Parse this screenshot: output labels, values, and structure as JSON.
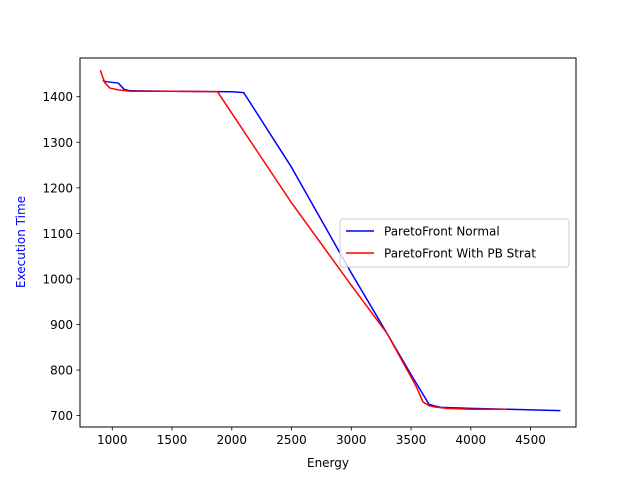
{
  "chart_data": {
    "type": "line",
    "title": "",
    "xlabel": "Energy",
    "ylabel": "Execution Time",
    "xlim": [
      730,
      4880
    ],
    "ylim": [
      675,
      1485
    ],
    "xticks": [
      1000,
      1500,
      2000,
      2500,
      3000,
      3500,
      4000,
      4500
    ],
    "yticks": [
      700,
      800,
      900,
      1000,
      1100,
      1200,
      1300,
      1400
    ],
    "grid": false,
    "legend_position": "center-right",
    "colors": {
      "ylabel": "#0000ff",
      "axes": "#000000",
      "background": "#ffffff"
    },
    "series": [
      {
        "name": "ParetoFront Normal",
        "color": "#0000ff",
        "points": [
          [
            920,
            1435
          ],
          [
            950,
            1433
          ],
          [
            1050,
            1430
          ],
          [
            1100,
            1416
          ],
          [
            1150,
            1413
          ],
          [
            1500,
            1412
          ],
          [
            2000,
            1411
          ],
          [
            2100,
            1409
          ],
          [
            2500,
            1245
          ],
          [
            3000,
            1013
          ],
          [
            3300,
            880
          ],
          [
            3500,
            790
          ],
          [
            3650,
            725
          ],
          [
            3700,
            721
          ],
          [
            3750,
            718
          ],
          [
            4000,
            716
          ],
          [
            4300,
            714
          ],
          [
            4750,
            711
          ]
        ]
      },
      {
        "name": "ParetoFront With PB Strat",
        "color": "#ff0000",
        "points": [
          [
            900,
            1458
          ],
          [
            920,
            1443
          ],
          [
            940,
            1430
          ],
          [
            980,
            1419
          ],
          [
            1050,
            1415
          ],
          [
            1150,
            1412
          ],
          [
            1500,
            1412
          ],
          [
            1880,
            1411
          ],
          [
            2500,
            1167
          ],
          [
            3000,
            986
          ],
          [
            3300,
            880
          ],
          [
            3520,
            775
          ],
          [
            3550,
            760
          ],
          [
            3600,
            730
          ],
          [
            3650,
            722
          ],
          [
            3700,
            719
          ],
          [
            3800,
            716
          ],
          [
            4000,
            714
          ],
          [
            4300,
            714
          ]
        ]
      }
    ]
  }
}
